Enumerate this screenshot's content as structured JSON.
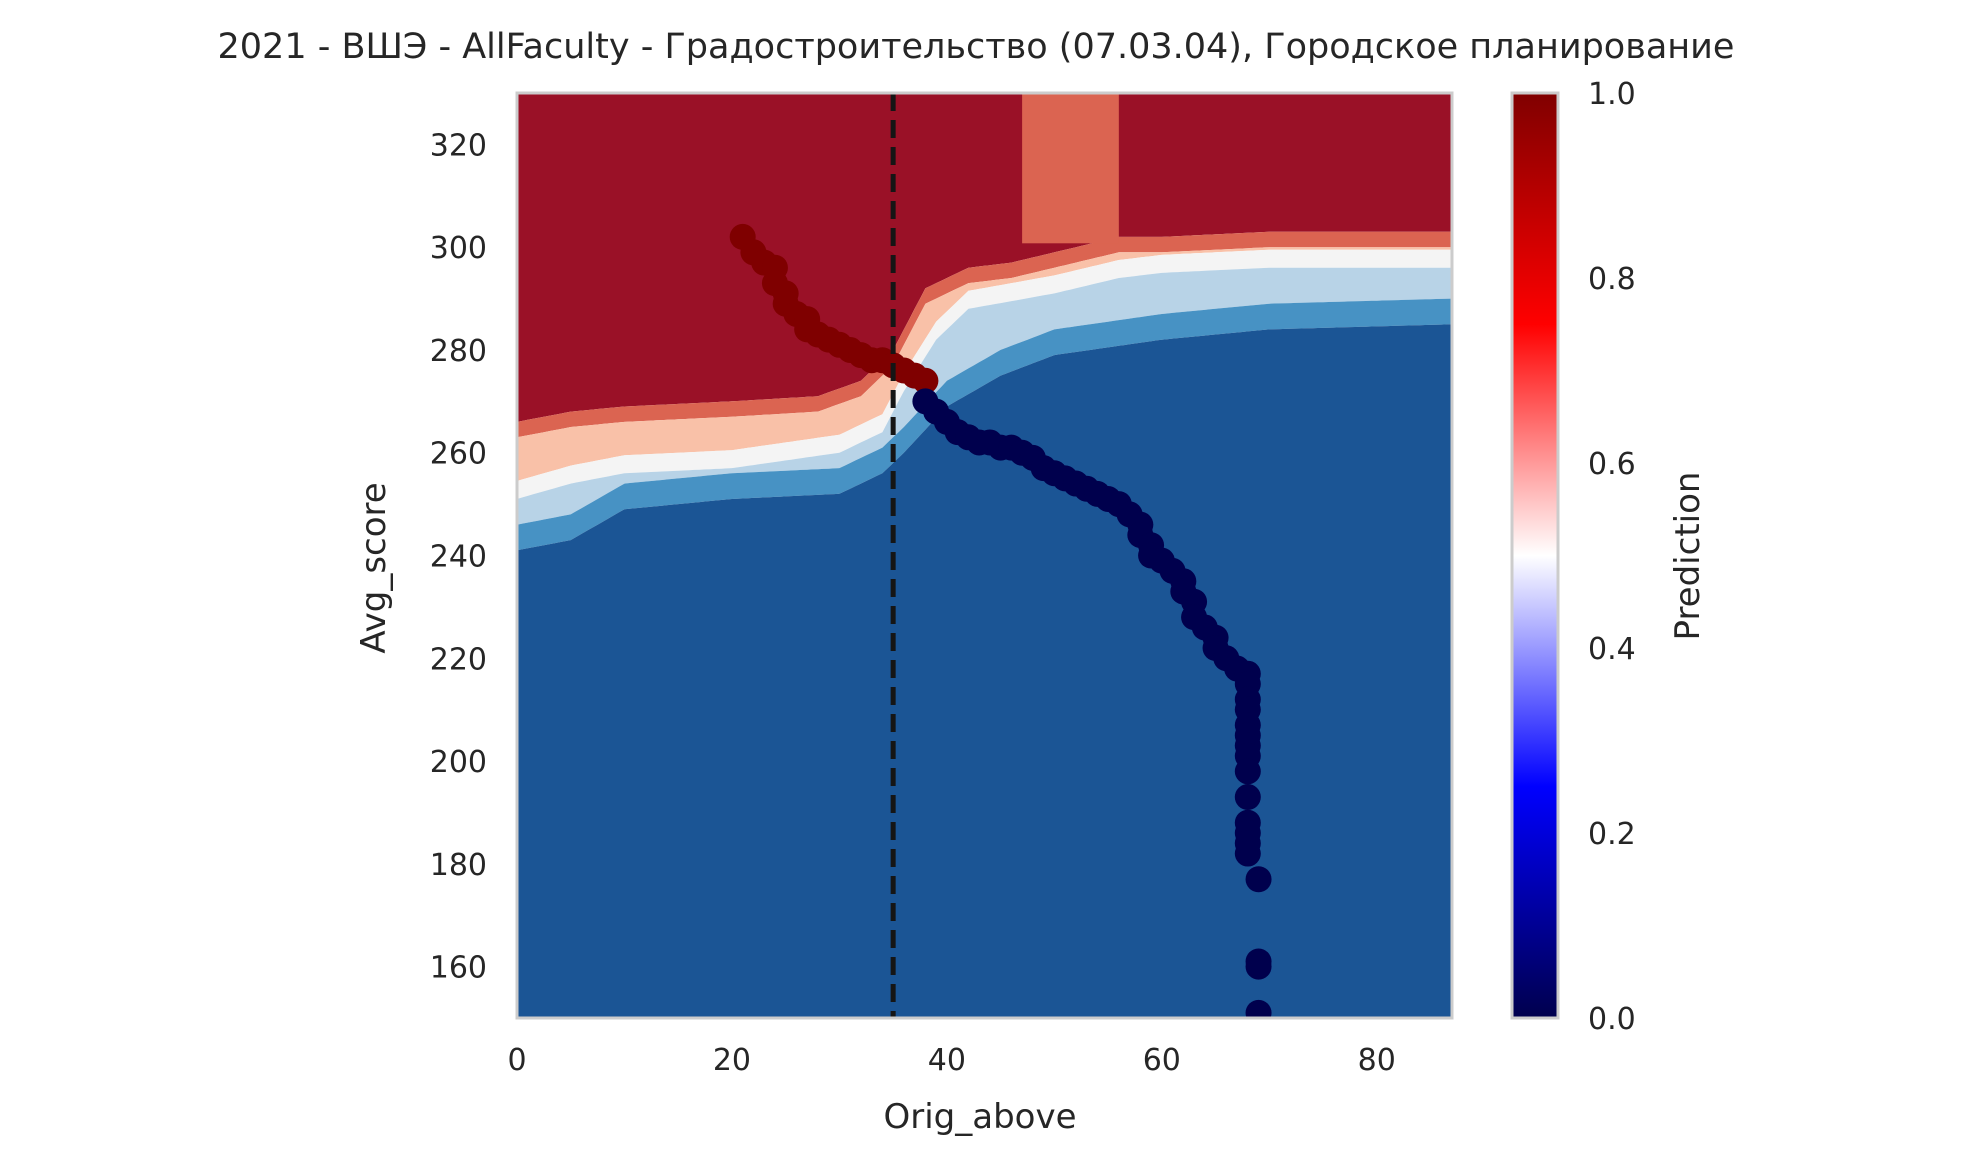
{
  "chart_data": {
    "type": "scatter",
    "title": "2021 - ВШЭ - AllFaculty - Градостроительство (07.03.04), Городское планирование",
    "xlabel": "Orig_above",
    "ylabel": "Avg_score",
    "xlim": [
      0,
      87
    ],
    "ylim": [
      150,
      330
    ],
    "x_ticks": [
      "0",
      "20",
      "40",
      "60",
      "80"
    ],
    "y_ticks": [
      "160",
      "180",
      "200",
      "220",
      "240",
      "260",
      "280",
      "300",
      "320"
    ],
    "grid": false,
    "threshold_x": 35,
    "colorbar": {
      "label": "Prediction",
      "range": [
        0,
        1
      ],
      "ticks": [
        "0.0",
        "0.2",
        "0.4",
        "0.6",
        "0.8",
        "1.0"
      ]
    },
    "background": {
      "type": "filled_contour",
      "levels": [
        {
          "label": "≥0.9",
          "color": "#9a1127"
        },
        {
          "label": "0.7–0.9",
          "color": "#db6451"
        },
        {
          "label": "0.6–0.7",
          "color": "#f9c1a8"
        },
        {
          "label": "0.4–0.6",
          "color": "#f4f4f4"
        },
        {
          "label": "0.3–0.4",
          "color": "#b8d3e7"
        },
        {
          "label": "0.1–0.3",
          "color": "#4792c4"
        },
        {
          "label": "<0.1",
          "color": "#1b5595"
        }
      ],
      "boundary_high": [
        [
          0,
          266
        ],
        [
          5,
          268
        ],
        [
          10,
          269
        ],
        [
          20,
          270
        ],
        [
          28,
          271
        ],
        [
          32,
          274
        ],
        [
          35,
          280
        ],
        [
          38,
          292
        ],
        [
          42,
          296
        ],
        [
          46,
          297
        ],
        [
          56,
          302
        ],
        [
          60,
          302
        ],
        [
          70,
          303
        ],
        [
          87,
          303
        ]
      ],
      "boundary_mid": [
        [
          0,
          253
        ],
        [
          5,
          256
        ],
        [
          10,
          258
        ],
        [
          20,
          259
        ],
        [
          30,
          262
        ],
        [
          34,
          266
        ],
        [
          36,
          274
        ],
        [
          39,
          284
        ],
        [
          42,
          290
        ],
        [
          50,
          293
        ],
        [
          56,
          296
        ],
        [
          60,
          297
        ],
        [
          70,
          298
        ],
        [
          87,
          298
        ]
      ],
      "boundary_low": [
        [
          0,
          244
        ],
        [
          5,
          246
        ],
        [
          10,
          252
        ],
        [
          20,
          254
        ],
        [
          30,
          255
        ],
        [
          34,
          259
        ],
        [
          36,
          263
        ],
        [
          40,
          272
        ],
        [
          45,
          278
        ],
        [
          50,
          282
        ],
        [
          60,
          285
        ],
        [
          70,
          287
        ],
        [
          87,
          288
        ]
      ],
      "hot_column": {
        "x": [
          47,
          56
        ],
        "value": 0.75
      }
    },
    "series": [
      {
        "color": "#7f0000",
        "points": [
          [
            21,
            302
          ],
          [
            22,
            299
          ],
          [
            23,
            297
          ],
          [
            24,
            296
          ],
          [
            24,
            293
          ],
          [
            25,
            291
          ],
          [
            25,
            289
          ],
          [
            26,
            287
          ],
          [
            27,
            286
          ],
          [
            27,
            284
          ],
          [
            28,
            283
          ],
          [
            29,
            282
          ],
          [
            30,
            281
          ],
          [
            31,
            280
          ],
          [
            32,
            279
          ],
          [
            33,
            278
          ],
          [
            34,
            278
          ],
          [
            35,
            277
          ],
          [
            36,
            276
          ],
          [
            37,
            275
          ],
          [
            38,
            274
          ]
        ]
      },
      {
        "color": "#00004d",
        "points": [
          [
            38,
            270
          ],
          [
            39,
            268
          ],
          [
            40,
            266
          ],
          [
            41,
            264
          ],
          [
            42,
            263
          ],
          [
            43,
            262
          ],
          [
            44,
            262
          ],
          [
            45,
            261
          ],
          [
            46,
            261
          ],
          [
            47,
            260
          ],
          [
            48,
            259
          ],
          [
            49,
            257
          ],
          [
            50,
            256
          ],
          [
            51,
            255
          ],
          [
            52,
            254
          ],
          [
            53,
            253
          ],
          [
            54,
            252
          ],
          [
            55,
            251
          ],
          [
            56,
            250
          ],
          [
            57,
            248
          ],
          [
            58,
            246
          ],
          [
            58,
            244
          ],
          [
            59,
            242
          ],
          [
            59,
            240
          ],
          [
            60,
            239
          ],
          [
            61,
            237
          ],
          [
            62,
            235
          ],
          [
            62,
            233
          ],
          [
            63,
            231
          ],
          [
            63,
            228
          ],
          [
            64,
            226
          ],
          [
            65,
            224
          ],
          [
            65,
            222
          ],
          [
            66,
            220
          ],
          [
            67,
            218
          ],
          [
            68,
            217
          ],
          [
            68,
            215
          ],
          [
            68,
            212
          ],
          [
            68,
            210
          ],
          [
            68,
            207
          ],
          [
            68,
            205
          ],
          [
            68,
            203
          ],
          [
            68,
            201
          ],
          [
            68,
            198
          ],
          [
            68,
            193
          ],
          [
            68,
            188
          ],
          [
            68,
            186
          ],
          [
            68,
            184
          ],
          [
            68,
            182
          ],
          [
            69,
            177
          ],
          [
            69,
            161
          ],
          [
            69,
            160
          ],
          [
            69,
            151
          ]
        ]
      }
    ]
  }
}
